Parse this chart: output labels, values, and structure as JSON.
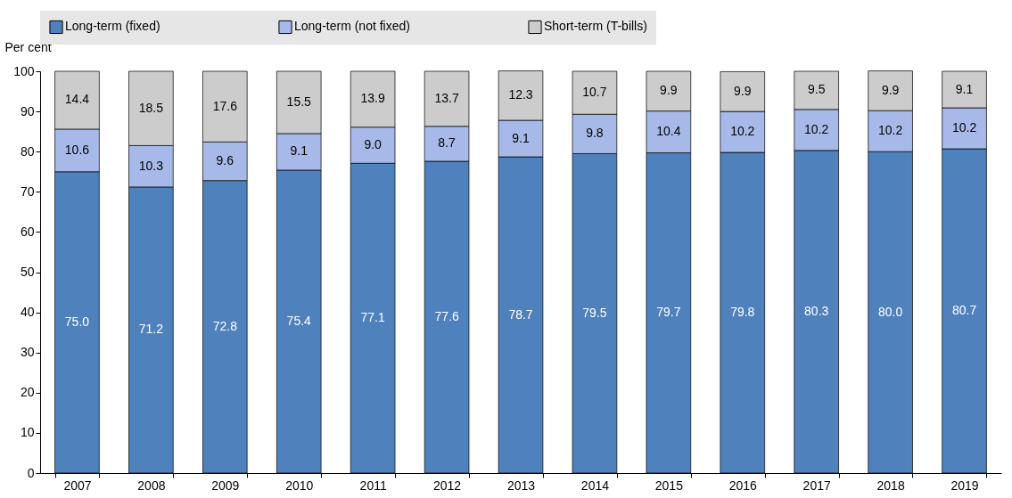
{
  "chart_data": {
    "type": "bar",
    "stacked": true,
    "ylabel": "Per cent",
    "categories": [
      "2007",
      "2008",
      "2009",
      "2010",
      "2011",
      "2012",
      "2013",
      "2014",
      "2015",
      "2016",
      "2017",
      "2018",
      "2019"
    ],
    "series": [
      {
        "name": "Long-term (fixed)",
        "color": "#4f81bd",
        "values": [
          75.0,
          71.2,
          72.8,
          75.4,
          77.1,
          77.6,
          78.7,
          79.5,
          79.7,
          79.8,
          80.3,
          80.0,
          80.7
        ],
        "value_labels": [
          "75.0",
          "71.2",
          "72.8",
          "75.4",
          "77.1",
          "77.6",
          "78.7",
          "79.5",
          "79.7",
          "79.8",
          "80.3",
          "80.0",
          "80.7"
        ]
      },
      {
        "name": "Long-term (not fixed)",
        "color": "#a7b9e8",
        "values": [
          10.6,
          10.3,
          9.6,
          9.1,
          9.0,
          8.7,
          9.1,
          9.8,
          10.4,
          10.2,
          10.2,
          10.2,
          10.2
        ],
        "value_labels": [
          "10.6",
          "10.3",
          "9.6",
          "9.1",
          "9.0",
          "8.7",
          "9.1",
          "9.8",
          "10.4",
          "10.2",
          "10.2",
          "10.2",
          "10.2"
        ]
      },
      {
        "name": "Short-term (T-bills)",
        "color": "#cccccc",
        "values": [
          14.4,
          18.5,
          17.6,
          15.5,
          13.9,
          13.7,
          12.3,
          10.7,
          9.9,
          9.9,
          9.5,
          9.9,
          9.1
        ],
        "value_labels": [
          "14.4",
          "18.5",
          "17.6",
          "15.5",
          "13.9",
          "13.7",
          "12.3",
          "10.7",
          "9.9",
          "9.9",
          "9.5",
          "9.9",
          "9.1"
        ]
      }
    ],
    "ylim": [
      0,
      100
    ],
    "yticks": [
      0,
      10,
      20,
      30,
      40,
      50,
      60,
      70,
      80,
      90,
      100
    ],
    "grid": false,
    "legend": "top"
  }
}
